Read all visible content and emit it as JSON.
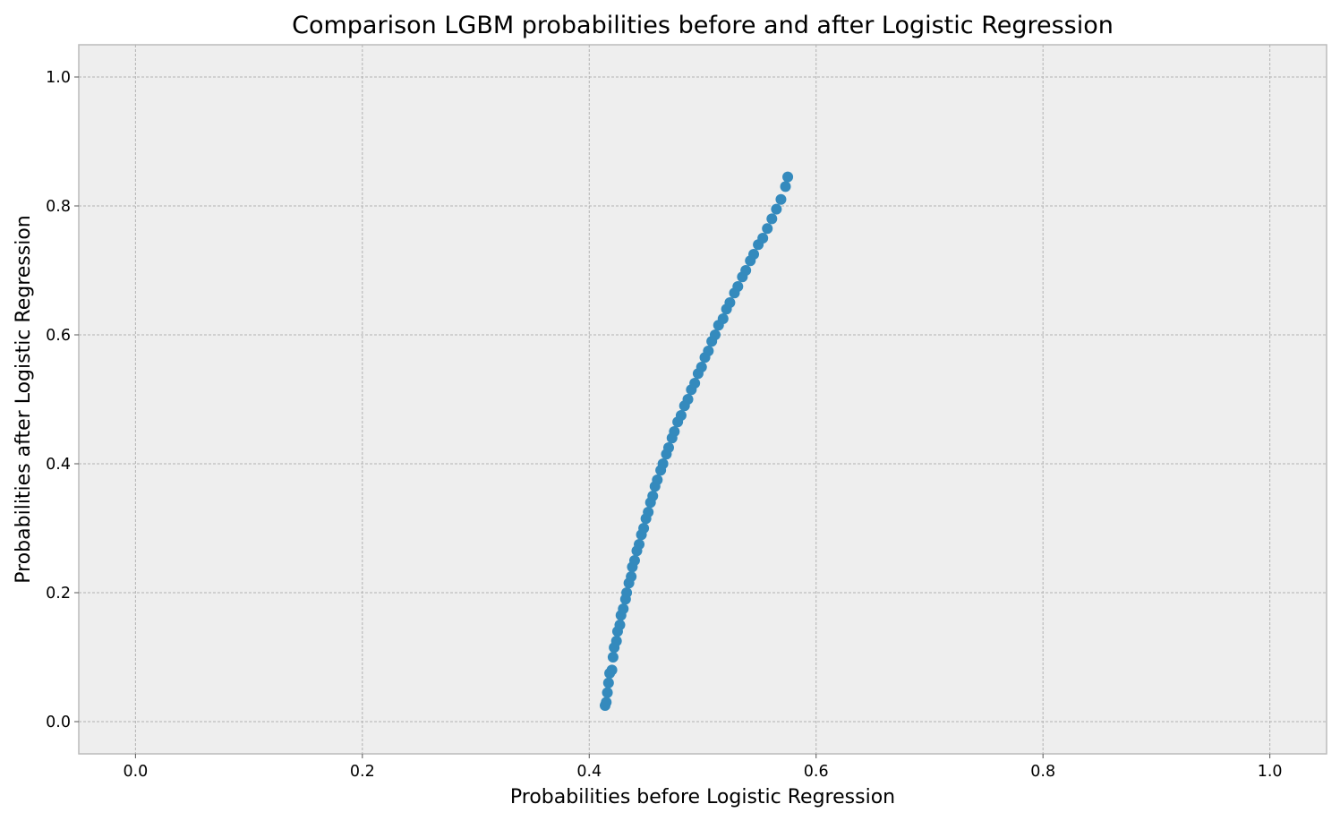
{
  "chart_data": {
    "type": "scatter",
    "title": "Comparison LGBM probabilities before and after Logistic Regression",
    "xlabel": "Probabilities before Logistic Regression",
    "ylabel": "Probabilities after Logistic Regression",
    "xlim": [
      -0.05,
      1.05
    ],
    "ylim": [
      -0.05,
      1.05
    ],
    "xticks": [
      "0.0",
      "0.2",
      "0.4",
      "0.6",
      "0.8",
      "1.0"
    ],
    "yticks": [
      "0.0",
      "0.2",
      "0.4",
      "0.6",
      "0.8",
      "1.0"
    ],
    "grid": true,
    "legend": "none",
    "colors": {
      "points": "#348abd",
      "plot_background": "#eeeeee",
      "grid": "#b2b2b2"
    },
    "series": [
      {
        "points": [
          [
            0.414,
            0.025
          ],
          [
            0.415,
            0.03
          ],
          [
            0.416,
            0.045
          ],
          [
            0.417,
            0.06
          ],
          [
            0.418,
            0.075
          ],
          [
            0.42,
            0.08
          ],
          [
            0.421,
            0.1
          ],
          [
            0.422,
            0.115
          ],
          [
            0.424,
            0.125
          ],
          [
            0.425,
            0.14
          ],
          [
            0.427,
            0.15
          ],
          [
            0.428,
            0.165
          ],
          [
            0.43,
            0.175
          ],
          [
            0.432,
            0.19
          ],
          [
            0.433,
            0.2
          ],
          [
            0.435,
            0.215
          ],
          [
            0.437,
            0.225
          ],
          [
            0.438,
            0.24
          ],
          [
            0.44,
            0.25
          ],
          [
            0.442,
            0.265
          ],
          [
            0.444,
            0.275
          ],
          [
            0.446,
            0.29
          ],
          [
            0.448,
            0.3
          ],
          [
            0.45,
            0.315
          ],
          [
            0.452,
            0.325
          ],
          [
            0.454,
            0.34
          ],
          [
            0.456,
            0.35
          ],
          [
            0.458,
            0.365
          ],
          [
            0.46,
            0.375
          ],
          [
            0.463,
            0.39
          ],
          [
            0.465,
            0.4
          ],
          [
            0.468,
            0.415
          ],
          [
            0.47,
            0.425
          ],
          [
            0.473,
            0.44
          ],
          [
            0.475,
            0.45
          ],
          [
            0.478,
            0.465
          ],
          [
            0.481,
            0.475
          ],
          [
            0.484,
            0.49
          ],
          [
            0.487,
            0.5
          ],
          [
            0.49,
            0.515
          ],
          [
            0.493,
            0.525
          ],
          [
            0.496,
            0.54
          ],
          [
            0.499,
            0.55
          ],
          [
            0.502,
            0.565
          ],
          [
            0.505,
            0.575
          ],
          [
            0.508,
            0.59
          ],
          [
            0.511,
            0.6
          ],
          [
            0.514,
            0.615
          ],
          [
            0.518,
            0.625
          ],
          [
            0.521,
            0.64
          ],
          [
            0.524,
            0.65
          ],
          [
            0.528,
            0.665
          ],
          [
            0.531,
            0.675
          ],
          [
            0.535,
            0.69
          ],
          [
            0.538,
            0.7
          ],
          [
            0.542,
            0.715
          ],
          [
            0.545,
            0.725
          ],
          [
            0.549,
            0.74
          ],
          [
            0.553,
            0.75
          ],
          [
            0.557,
            0.765
          ],
          [
            0.561,
            0.78
          ],
          [
            0.565,
            0.795
          ],
          [
            0.569,
            0.81
          ],
          [
            0.573,
            0.83
          ],
          [
            0.575,
            0.845
          ]
        ]
      }
    ]
  }
}
